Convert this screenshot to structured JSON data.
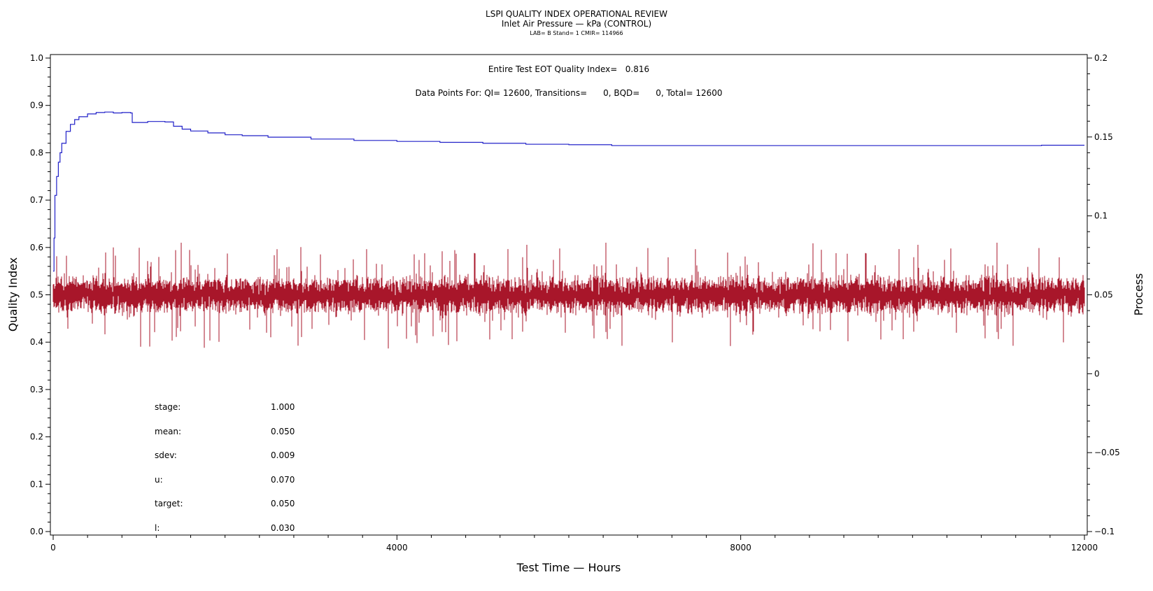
{
  "header": {
    "title": "LSPI QUALITY INDEX OPERATIONAL REVIEW",
    "subtitle": "Inlet Air Pressure — kPa (CONTROL)",
    "meta": "LAB= B Stand= 1 CMIR= 114966"
  },
  "annotations": {
    "eot": "Entire Test EOT Quality Index=   0.816",
    "points": "Data Points For: QI= 12600, Transitions=      0, BQD=      0, Total= 12600"
  },
  "stats": [
    {
      "label": "stage:",
      "value": "1.000"
    },
    {
      "label": "mean:",
      "value": "0.050"
    },
    {
      "label": "sdev:",
      "value": "0.009"
    },
    {
      "label": "u:",
      "value": "0.070"
    },
    {
      "label": "target:",
      "value": "0.050"
    },
    {
      "label": "l:",
      "value": "0.030"
    }
  ],
  "colors": {
    "quality_index": "#2020c8",
    "process": "#a8162a",
    "frame": "#000000"
  },
  "chart_data": {
    "type": "line",
    "xlabel": "Test Time — Hours",
    "ylabel": "Quality Index",
    "y2label": "Process",
    "xlim": [
      0,
      12000
    ],
    "ylim": [
      0,
      1.0
    ],
    "y2lim": [
      -0.1,
      0.2
    ],
    "x_ticks": [
      "0",
      "4000",
      "8000",
      "12000"
    ],
    "y_ticks": [
      "0.0",
      "0.1",
      "0.2",
      "0.3",
      "0.4",
      "0.5",
      "0.6",
      "0.7",
      "0.8",
      "0.9",
      "1.0"
    ],
    "y2_ticks": [
      "−0.1",
      "−0.05",
      "0",
      "0.05",
      "0.1",
      "0.15",
      "0.2"
    ],
    "grid": false,
    "series": [
      {
        "axis": "left",
        "x": [
          0,
          10,
          20,
          40,
          60,
          80,
          100,
          150,
          200,
          250,
          300,
          400,
          500,
          600,
          700,
          800,
          900,
          920,
          1000,
          1100,
          1200,
          1300,
          1400,
          1500,
          1600,
          1800,
          2000,
          2200,
          2500,
          3000,
          3500,
          4000,
          4500,
          5000,
          5500,
          6000,
          6500,
          7000,
          7500,
          8000,
          8500,
          9000,
          9500,
          10000,
          10500,
          11000,
          11500,
          12000
        ],
        "values": [
          0.55,
          0.62,
          0.71,
          0.75,
          0.78,
          0.8,
          0.82,
          0.845,
          0.86,
          0.87,
          0.876,
          0.882,
          0.885,
          0.886,
          0.884,
          0.885,
          0.884,
          0.864,
          0.864,
          0.866,
          0.866,
          0.865,
          0.856,
          0.85,
          0.846,
          0.842,
          0.838,
          0.836,
          0.833,
          0.829,
          0.826,
          0.824,
          0.822,
          0.82,
          0.818,
          0.817,
          0.815,
          0.815,
          0.815,
          0.815,
          0.815,
          0.815,
          0.815,
          0.815,
          0.815,
          0.815,
          0.816,
          0.816
        ]
      },
      {
        "axis": "right",
        "summary": {
          "count": 12600,
          "mean": 0.05,
          "sdev": 0.009,
          "min": 0.016,
          "max": 0.083
        }
      }
    ]
  }
}
